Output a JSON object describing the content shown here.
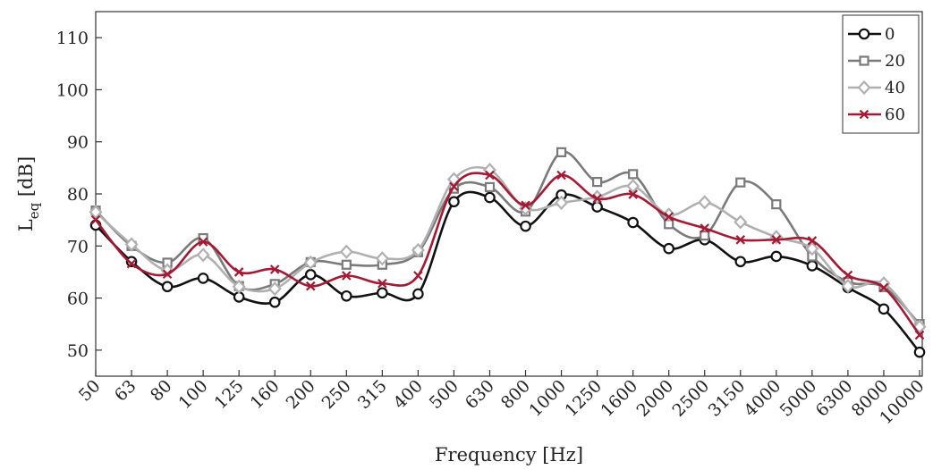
{
  "chart_data": {
    "type": "line",
    "xlabel": "Frequency [Hz]",
    "ylabel": {
      "main": "L",
      "subscript": "eq",
      "unit": " [dB]"
    },
    "categories": [
      "50",
      "63",
      "80",
      "100",
      "125",
      "160",
      "200",
      "250",
      "315",
      "400",
      "500",
      "630",
      "800",
      "1000",
      "1250",
      "1600",
      "2000",
      "2500",
      "3150",
      "4000",
      "5000",
      "6300",
      "8000",
      "10000"
    ],
    "yticks": [
      50,
      60,
      70,
      80,
      90,
      100,
      110
    ],
    "ylim": [
      45,
      115
    ],
    "grid": false,
    "legend_position": "top-right",
    "series": [
      {
        "name": "0",
        "color": "#111111",
        "marker": "circle",
        "values": [
          74,
          67,
          62.2,
          63.8,
          60.2,
          59.2,
          64.5,
          60.4,
          61,
          60.8,
          78.5,
          79.3,
          73.8,
          79.8,
          77.5,
          74.5,
          69.5,
          71.2,
          67,
          68,
          66.2,
          62,
          57.9,
          49.6
        ]
      },
      {
        "name": "20",
        "color": "#7a7a7a",
        "marker": "square",
        "values": [
          76.8,
          70,
          66.8,
          71.5,
          62.3,
          62.7,
          66.9,
          66.4,
          66.4,
          68.8,
          81,
          81.3,
          76.6,
          88,
          82.3,
          83.8,
          74.2,
          72,
          82.2,
          78,
          68,
          63.1,
          62.1,
          55
        ]
      },
      {
        "name": "40",
        "color": "#b0b0b0",
        "marker": "diamond",
        "values": [
          76.5,
          70.3,
          65.3,
          68.3,
          62.2,
          61.8,
          66.8,
          68.9,
          67.6,
          69.2,
          82.8,
          84.6,
          77.2,
          78.3,
          79.4,
          81.5,
          76,
          78.4,
          74.6,
          71.7,
          69.5,
          62.3,
          62.8,
          54.5
        ]
      },
      {
        "name": "60",
        "color": "#a31a34",
        "marker": "x",
        "values": [
          75,
          66.6,
          64.6,
          70.8,
          65,
          65.5,
          62.3,
          64.3,
          62.8,
          64.3,
          81.4,
          83.6,
          77.8,
          83.6,
          79.1,
          79.9,
          75.6,
          73.4,
          71.2,
          71.2,
          71,
          64.4,
          62,
          52.9
        ]
      }
    ]
  }
}
